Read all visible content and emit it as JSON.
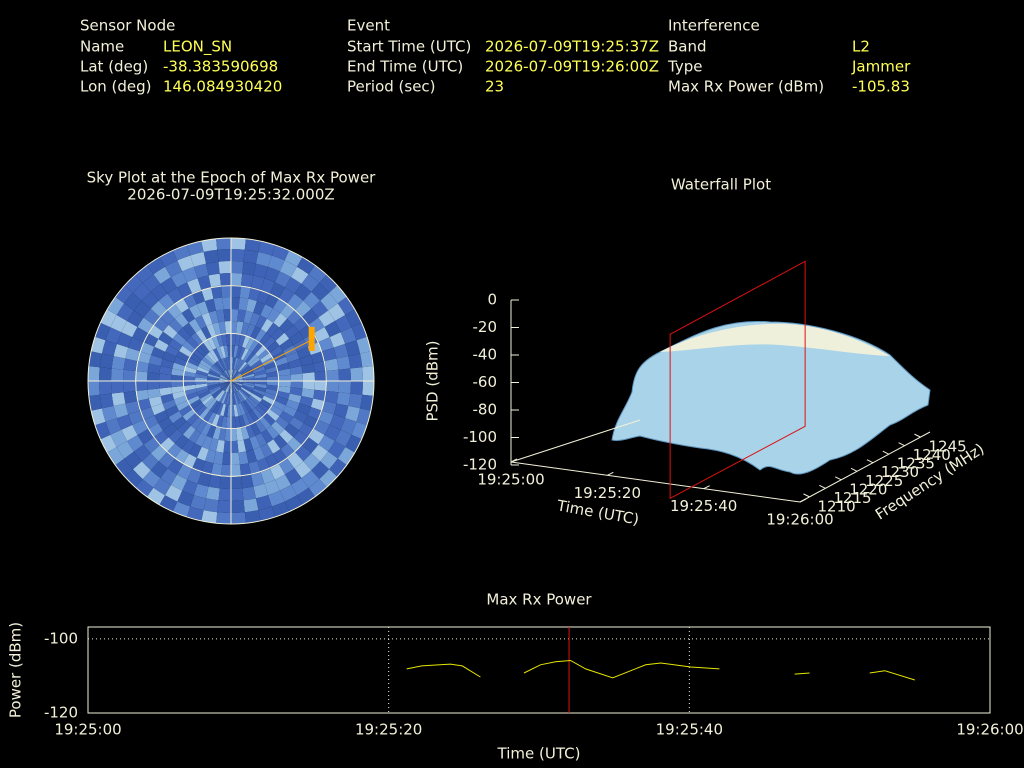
{
  "info": {
    "sensor": {
      "title": "Sensor Node",
      "rows": [
        [
          "Name",
          "LEON_SN"
        ],
        [
          "Lat (deg)",
          "-38.383590698"
        ],
        [
          "Lon (deg)",
          "146.084930420"
        ]
      ]
    },
    "event": {
      "title": "Event",
      "rows": [
        [
          "Start Time (UTC)",
          "2026-07-09T19:25:37Z"
        ],
        [
          "End Time (UTC)",
          "2026-07-09T19:26:00Z"
        ],
        [
          "Period (sec)",
          "23"
        ]
      ]
    },
    "interference": {
      "title": "Interference",
      "rows": [
        [
          "Band",
          "L2"
        ],
        [
          "Type",
          "Jammer"
        ],
        [
          "Max Rx Power (dBm)",
          "-105.83"
        ]
      ]
    }
  },
  "chart_data": [
    {
      "type": "polar",
      "title": "Sky Plot at the Epoch of Max Rx Power",
      "subtitle": "2026-07-09T19:25:32.000Z",
      "azimuth": [
        63
      ],
      "elevation": [
        33
      ],
      "color": "#ffa500",
      "line_color": "#ffa500",
      "rlim": [
        0,
        90
      ],
      "rticks": [
        0,
        30,
        60
      ],
      "grid": true
    },
    {
      "type": "surface3d",
      "title": "Waterfall Plot",
      "xlabel": "Time (UTC)",
      "ylabel": "Frequency (MHz)",
      "zlabel": "PSD (dBm)",
      "xlim": [
        0,
        60
      ],
      "xticks": [
        {
          "value": 0,
          "label": "19:25:00"
        },
        {
          "value": 20,
          "label": "19:25:20"
        },
        {
          "value": 40,
          "label": "19:25:40"
        },
        {
          "value": 60,
          "label": "19:26:00"
        }
      ],
      "ylim": [
        1207,
        1248
      ],
      "yticks": [
        1210,
        1215,
        1220,
        1225,
        1230,
        1235,
        1240,
        1245
      ],
      "zlim": [
        -120,
        0
      ],
      "zticks": [
        0,
        -20,
        -40,
        -60,
        -80,
        -100,
        -120
      ],
      "marker_x": 32,
      "marker_color": "#dd1111"
    },
    {
      "type": "line",
      "title": "Max Rx Power",
      "xlabel": "Time (UTC)",
      "ylabel": "Power (dBm)",
      "x": [
        21.2,
        22.2,
        24.1,
        24.9,
        26.1,
        null,
        29.0,
        30.1,
        31.1,
        32.1,
        33.1,
        34.9,
        37.1,
        38.1,
        40.1,
        42.0,
        null,
        47.0,
        48.0,
        null,
        52.0,
        53.0,
        55.0
      ],
      "series": [
        {
          "name": "Max Rx Power",
          "color": "#e6e600",
          "values": [
            -108.1,
            -107.3,
            -106.8,
            -107.3,
            -110.3,
            null,
            -109.2,
            -107.0,
            -106.2,
            -105.83,
            -108.1,
            -110.5,
            -107.0,
            -106.5,
            -107.6,
            -108.1,
            null,
            -109.5,
            -109.2,
            null,
            -109.2,
            -108.6,
            -111.1
          ]
        }
      ],
      "xlim": [
        0,
        60
      ],
      "xticks": [
        {
          "value": 0,
          "label": "19:25:00"
        },
        {
          "value": 20,
          "label": "19:25:20"
        },
        {
          "value": 40,
          "label": "19:25:40"
        },
        {
          "value": 60,
          "label": "19:26:00"
        }
      ],
      "ylim": [
        -120,
        -96.8
      ],
      "yticks": [
        -100,
        -120
      ],
      "grid": true,
      "marker_x": 32,
      "marker_color": "#dd1111"
    }
  ]
}
